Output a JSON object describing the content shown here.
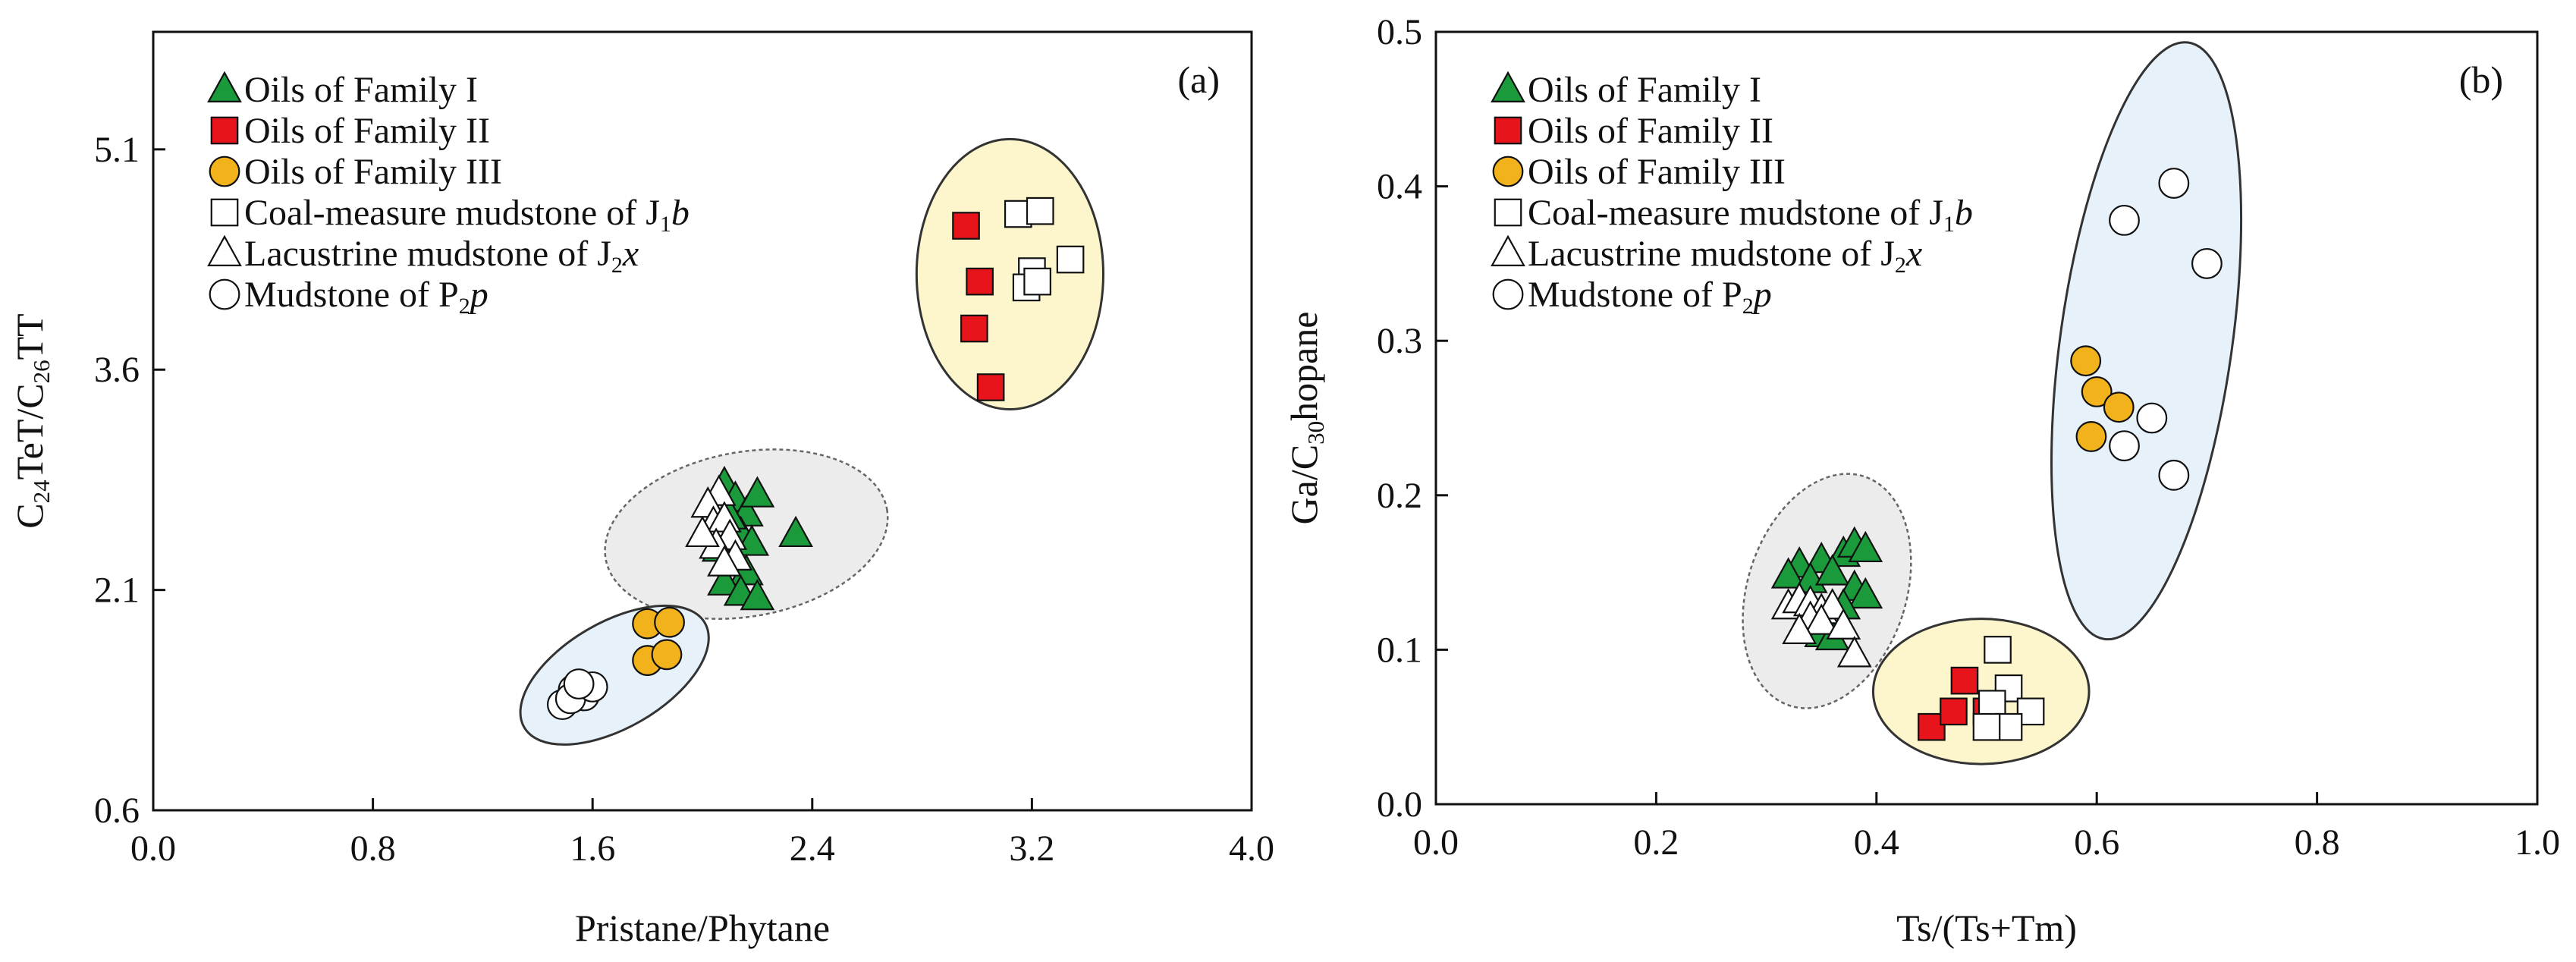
{
  "chart_data": [
    {
      "type": "scatter",
      "panel": "(a)",
      "xlabel": "Pristane/Phytane",
      "ylabel": {
        "parts": [
          [
            "C",
            ""
          ],
          [
            "24",
            "sub"
          ],
          [
            "TeT/C",
            ""
          ],
          [
            "26",
            "sub"
          ],
          [
            "TT",
            ""
          ]
        ]
      },
      "xlim": [
        0.0,
        4.0
      ],
      "ylim": [
        0.6,
        5.9
      ],
      "xticks": [
        0.0,
        0.8,
        1.6,
        2.4,
        3.2,
        4.0
      ],
      "xtick_labels": [
        "0.0",
        "0.8",
        "1.6",
        "2.4",
        "3.2",
        "4.0"
      ],
      "yticks": [
        0.6,
        2.1,
        3.6,
        5.1
      ],
      "ytick_labels": [
        "0.6",
        "2.1",
        "3.6",
        "5.1"
      ],
      "legend_position": "top-left",
      "legend": [
        {
          "marker": "triangle-filled",
          "parts": [
            [
              "Oils of Family I",
              ""
            ]
          ]
        },
        {
          "marker": "square-filled",
          "parts": [
            [
              "Oils of Family II",
              ""
            ]
          ]
        },
        {
          "marker": "circle-filled",
          "parts": [
            [
              "Oils of Family III",
              ""
            ]
          ]
        },
        {
          "marker": "square-open",
          "parts": [
            [
              "Coal-measure mudstone of J",
              ""
            ],
            [
              "1",
              "sub"
            ],
            [
              "b",
              "italic"
            ]
          ]
        },
        {
          "marker": "triangle-open",
          "parts": [
            [
              "Lacustrine mudstone of J",
              ""
            ],
            [
              "2",
              "sub"
            ],
            [
              "x",
              "italic"
            ]
          ]
        },
        {
          "marker": "circle-open",
          "parts": [
            [
              "Mudstone of P",
              ""
            ],
            [
              "2",
              "sub"
            ],
            [
              "p",
              "italic"
            ]
          ]
        }
      ],
      "regions": [
        {
          "name": "family-II-ellipse",
          "cx": 3.12,
          "cy": 4.25,
          "rx": 0.34,
          "ry": 0.92,
          "angle": 0,
          "fill": "#fdf6cc",
          "dashed": false
        },
        {
          "name": "family-I-ellipse",
          "cx": 2.16,
          "cy": 2.48,
          "rx": 0.52,
          "ry": 0.56,
          "angle": -10,
          "fill": "#ececec",
          "dashed": true
        },
        {
          "name": "family-III-ellipse",
          "cx": 1.68,
          "cy": 1.52,
          "rx": 0.38,
          "ry": 0.36,
          "angle": -30,
          "fill": "#e6f1fa",
          "dashed": false
        }
      ],
      "series": [
        {
          "name": "Oils of Family I",
          "marker": "triangle-filled",
          "color": "#1a9a3a",
          "x": [
            2.08,
            2.12,
            2.16,
            2.2,
            2.1,
            2.14,
            2.18,
            2.06,
            2.12,
            2.16,
            2.08,
            2.14,
            2.2,
            2.34,
            2.1
          ],
          "y": [
            2.82,
            2.72,
            2.62,
            2.75,
            2.55,
            2.48,
            2.42,
            2.38,
            2.3,
            2.22,
            2.15,
            2.08,
            2.05,
            2.48,
            2.6
          ]
        },
        {
          "name": "Oils of Family II",
          "marker": "square-filled",
          "color": "#e8141c",
          "x": [
            2.96,
            3.01,
            2.99,
            3.05
          ],
          "y": [
            4.58,
            4.2,
            3.88,
            3.48
          ]
        },
        {
          "name": "Oils of Family III",
          "marker": "circle-filled",
          "color": "#f2b21c",
          "x": [
            1.8,
            1.88,
            1.8,
            1.87
          ],
          "y": [
            1.87,
            1.88,
            1.62,
            1.66
          ]
        },
        {
          "name": "Coal-measure mudstone of J1b",
          "marker": "square-open",
          "color": "#ffffff",
          "x": [
            3.15,
            3.23,
            3.2,
            3.18,
            3.22,
            3.34
          ],
          "y": [
            4.66,
            4.68,
            4.27,
            4.16,
            4.2,
            4.35
          ]
        },
        {
          "name": "Lacustrine mudstone of J2x",
          "marker": "triangle-open",
          "color": "#ffffff",
          "x": [
            2.06,
            2.02,
            2.04,
            2.08,
            2.1,
            2.05,
            2.0,
            2.12,
            2.08
          ],
          "y": [
            2.76,
            2.68,
            2.55,
            2.58,
            2.46,
            2.4,
            2.48,
            2.32,
            2.28
          ]
        },
        {
          "name": "Mudstone of P2p",
          "marker": "circle-open",
          "color": "#ffffff",
          "x": [
            1.49,
            1.53,
            1.57,
            1.52,
            1.6,
            1.55
          ],
          "y": [
            1.32,
            1.42,
            1.38,
            1.36,
            1.44,
            1.46
          ]
        }
      ]
    },
    {
      "type": "scatter",
      "panel": "(b)",
      "xlabel": "Ts/(Ts+Tm)",
      "ylabel": {
        "parts": [
          [
            "Ga/C",
            ""
          ],
          [
            "30",
            "sub"
          ],
          [
            "hopane",
            ""
          ]
        ]
      },
      "xlim": [
        0.0,
        1.0
      ],
      "ylim": [
        0.0,
        0.5
      ],
      "xticks": [
        0.0,
        0.2,
        0.4,
        0.6,
        0.8,
        1.0
      ],
      "xtick_labels": [
        "0.0",
        "0.2",
        "0.4",
        "0.6",
        "0.8",
        "1.0"
      ],
      "yticks": [
        0.0,
        0.1,
        0.2,
        0.3,
        0.4,
        0.5
      ],
      "ytick_labels": [
        "0.0",
        "0.1",
        "0.2",
        "0.3",
        "0.4",
        "0.5"
      ],
      "legend_position": "top-left",
      "legend": [
        {
          "marker": "triangle-filled",
          "parts": [
            [
              "Oils of Family I",
              ""
            ]
          ]
        },
        {
          "marker": "square-filled",
          "parts": [
            [
              "Oils of Family II",
              ""
            ]
          ]
        },
        {
          "marker": "circle-filled",
          "parts": [
            [
              "Oils of Family III",
              ""
            ]
          ]
        },
        {
          "marker": "square-open",
          "parts": [
            [
              "Coal-measure mudstone of J",
              ""
            ],
            [
              "1",
              "sub"
            ],
            [
              "b",
              "italic"
            ]
          ]
        },
        {
          "marker": "triangle-open",
          "parts": [
            [
              "Lacustrine mudstone of J",
              ""
            ],
            [
              "2",
              "sub"
            ],
            [
              "x",
              "italic"
            ]
          ]
        },
        {
          "marker": "circle-open",
          "parts": [
            [
              "Mudstone of P",
              ""
            ],
            [
              "2",
              "sub"
            ],
            [
              "p",
              "italic"
            ]
          ]
        }
      ],
      "regions": [
        {
          "name": "mudstone-P2p-ellipse",
          "cx": 0.645,
          "cy": 0.3,
          "rx": 0.078,
          "ry": 0.195,
          "angle": 8,
          "fill": "#e6f1fa",
          "dashed": false
        },
        {
          "name": "family-I-ellipse",
          "cx": 0.355,
          "cy": 0.138,
          "rx": 0.072,
          "ry": 0.078,
          "angle": 18,
          "fill": "#ececec",
          "dashed": true
        },
        {
          "name": "family-II-ellipse",
          "cx": 0.495,
          "cy": 0.073,
          "rx": 0.098,
          "ry": 0.047,
          "angle": 0,
          "fill": "#fdf6cc",
          "dashed": false
        }
      ],
      "series": [
        {
          "name": "Oils of Family I",
          "marker": "triangle-filled",
          "color": "#1a9a3a",
          "x": [
            0.33,
            0.35,
            0.37,
            0.38,
            0.39,
            0.32,
            0.34,
            0.36,
            0.38,
            0.39,
            0.37,
            0.35,
            0.36,
            0.34,
            0.33
          ],
          "y": [
            0.155,
            0.158,
            0.162,
            0.168,
            0.165,
            0.148,
            0.145,
            0.15,
            0.14,
            0.135,
            0.128,
            0.11,
            0.108,
            0.125,
            0.132
          ]
        },
        {
          "name": "Oils of Family II",
          "marker": "square-filled",
          "color": "#e8141c",
          "x": [
            0.45,
            0.47,
            0.48,
            0.5
          ],
          "y": [
            0.05,
            0.06,
            0.08,
            0.06
          ]
        },
        {
          "name": "Oils of Family III",
          "marker": "circle-filled",
          "color": "#f2b21c",
          "x": [
            0.59,
            0.6,
            0.62,
            0.595
          ],
          "y": [
            0.287,
            0.267,
            0.257,
            0.238
          ]
        },
        {
          "name": "Coal-measure mudstone of J1b",
          "marker": "square-open",
          "color": "#ffffff",
          "x": [
            0.51,
            0.52,
            0.505,
            0.54,
            0.52,
            0.5
          ],
          "y": [
            0.1,
            0.075,
            0.065,
            0.06,
            0.05,
            0.05
          ]
        },
        {
          "name": "Lacustrine mudstone of J2x",
          "marker": "triangle-open",
          "color": "#ffffff",
          "x": [
            0.32,
            0.33,
            0.34,
            0.35,
            0.36,
            0.34,
            0.35,
            0.33,
            0.37,
            0.38
          ],
          "y": [
            0.128,
            0.132,
            0.13,
            0.125,
            0.128,
            0.12,
            0.118,
            0.112,
            0.115,
            0.097
          ]
        },
        {
          "name": "Mudstone of P2p",
          "marker": "circle-open",
          "color": "#ffffff",
          "x": [
            0.625,
            0.67,
            0.7,
            0.65,
            0.625,
            0.67
          ],
          "y": [
            0.378,
            0.402,
            0.35,
            0.25,
            0.232,
            0.213
          ]
        }
      ]
    }
  ]
}
